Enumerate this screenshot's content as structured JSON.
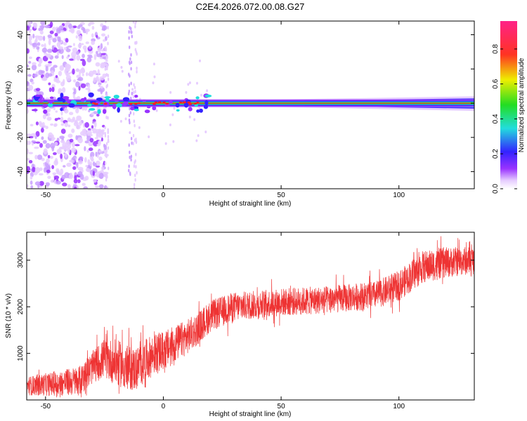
{
  "figure": {
    "title": "C2E4.2026.072.00.08.G27"
  },
  "chart_data": [
    {
      "type": "heatmap",
      "xlabel": "Height of straight line (km)",
      "ylabel": "Frequency (Hz)",
      "xlim": [
        -58,
        132
      ],
      "ylim": [
        -50,
        48
      ],
      "x_ticks": [
        -50,
        0,
        50,
        100
      ],
      "y_ticks": [
        -40,
        -20,
        0,
        20,
        40
      ],
      "colorbar": {
        "label": "Normalized spectral amplitude",
        "range": [
          0,
          0.96
        ],
        "ticks": [
          0.0,
          0.2,
          0.4,
          0.6,
          0.8
        ],
        "colormap": "rainbow (violet-blue-cyan-green-yellow-red-magenta)"
      },
      "ridge": {
        "frequency_hz": 0,
        "amplitude_peak": 0.9,
        "x_start": -58,
        "x_end": 132
      },
      "noise_region_x": [
        -58,
        -30
      ],
      "grid": false,
      "colors": {
        "low": "#e6ccff",
        "violet": "#9933ff",
        "blue": "#3322ff",
        "cyan": "#22dddd",
        "green": "#22dd22",
        "red": "#ff2222"
      }
    },
    {
      "type": "line",
      "xlabel": "Height of straight line (km)",
      "ylabel": "SNR (10 * v/v)",
      "xlim": [
        -58,
        132
      ],
      "ylim": [
        0,
        3600
      ],
      "x_ticks": [
        -50,
        0,
        50,
        100
      ],
      "y_ticks": [
        1000,
        2000,
        3000
      ],
      "grid": false,
      "series": [
        {
          "color": "#ee3333",
          "trend_points": [
            [
              -58,
              300
            ],
            [
              -45,
              350
            ],
            [
              -35,
              420
            ],
            [
              -30,
              700
            ],
            [
              -25,
              900
            ],
            [
              -20,
              800
            ],
            [
              -15,
              700
            ],
            [
              -12,
              650
            ],
            [
              -5,
              950
            ],
            [
              0,
              1050
            ],
            [
              5,
              1200
            ],
            [
              10,
              1350
            ],
            [
              15,
              1550
            ],
            [
              20,
              1800
            ],
            [
              30,
              2000
            ],
            [
              50,
              2100
            ],
            [
              70,
              2150
            ],
            [
              90,
              2250
            ],
            [
              100,
              2450
            ],
            [
              110,
              2850
            ],
            [
              120,
              2950
            ],
            [
              132,
              3000
            ]
          ],
          "noise_amplitude_points": [
            [
              -58,
              200
            ],
            [
              -30,
              350
            ],
            [
              -20,
              500
            ],
            [
              -5,
              450
            ],
            [
              15,
              350
            ],
            [
              40,
              300
            ],
            [
              90,
              300
            ],
            [
              110,
              350
            ],
            [
              132,
              300
            ]
          ]
        }
      ]
    }
  ]
}
